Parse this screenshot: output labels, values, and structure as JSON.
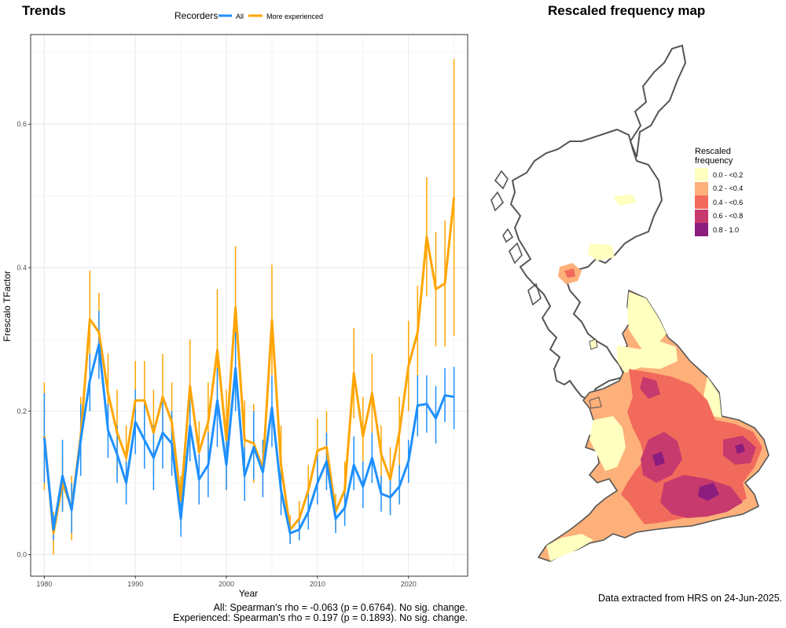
{
  "trends_title": "Trends",
  "map_title": "Rescaled frequency map",
  "legend": {
    "title": "Recorders",
    "items": [
      {
        "label": "All",
        "color": "#1e90ff"
      },
      {
        "label": "More experienced",
        "color": "#ffa500"
      }
    ]
  },
  "stats": {
    "all": "All: Spearman's rho = -0.063 (p = 0.6764). No sig. change.",
    "experienced": "Experienced: Spearman's rho = 0.197 (p = 0.1893). No sig. change."
  },
  "extract_note": "Data extracted from HRS on 24-Jun-2025.",
  "map_legend": {
    "title_line1": "Rescaled",
    "title_line2": "frequency",
    "classes": [
      {
        "label": "0.0 - <0.2",
        "color": "#ffffc0"
      },
      {
        "label": "0.2 - <0.4",
        "color": "#fdb07a"
      },
      {
        "label": "0.4 - <0.6",
        "color": "#f26a5b"
      },
      {
        "label": "0.6 - <0.8",
        "color": "#c63a6e"
      },
      {
        "label": "0.8 - 1.0",
        "color": "#8b1d7e"
      }
    ]
  },
  "chart_data": {
    "type": "line",
    "title": "Trends",
    "xlabel": "Year",
    "ylabel": "Frescalo TFactor",
    "xlim": [
      1978.5,
      2026.5
    ],
    "ylim": [
      -0.03,
      0.725
    ],
    "xticks": [
      1980,
      1990,
      2000,
      2010,
      2020
    ],
    "yticks": [
      0.0,
      0.2,
      0.4,
      0.6
    ],
    "ytick_labels": [
      "0.0",
      "0.2",
      "0.4",
      "0.6"
    ],
    "grid": true,
    "legend_position": "top",
    "x": [
      1980,
      1981,
      1982,
      1983,
      1984,
      1985,
      1986,
      1987,
      1988,
      1989,
      1990,
      1991,
      1992,
      1993,
      1994,
      1995,
      1996,
      1997,
      1998,
      1999,
      2000,
      2001,
      2002,
      2003,
      2004,
      2005,
      2006,
      2007,
      2008,
      2009,
      2010,
      2011,
      2012,
      2013,
      2014,
      2015,
      2016,
      2017,
      2018,
      2019,
      2020,
      2021,
      2022,
      2023,
      2024,
      2025
    ],
    "series": [
      {
        "name": "All",
        "color": "#1e90ff",
        "values": [
          0.163,
          0.035,
          0.11,
          0.062,
          0.16,
          0.243,
          0.293,
          0.173,
          0.14,
          0.1,
          0.185,
          0.16,
          0.135,
          0.17,
          0.155,
          0.05,
          0.18,
          0.105,
          0.125,
          0.215,
          0.125,
          0.26,
          0.11,
          0.15,
          0.115,
          0.205,
          0.09,
          0.03,
          0.035,
          0.06,
          0.1,
          0.13,
          0.05,
          0.065,
          0.125,
          0.095,
          0.135,
          0.085,
          0.08,
          0.095,
          0.13,
          0.208,
          0.21,
          0.19,
          0.222,
          0.22
        ],
        "lower": [
          0.1,
          0.02,
          0.06,
          0.03,
          0.11,
          0.2,
          0.245,
          0.135,
          0.1,
          0.07,
          0.14,
          0.12,
          0.09,
          0.12,
          0.11,
          0.025,
          0.13,
          0.07,
          0.08,
          0.15,
          0.09,
          0.2,
          0.075,
          0.105,
          0.08,
          0.15,
          0.055,
          0.015,
          0.02,
          0.035,
          0.07,
          0.09,
          0.03,
          0.04,
          0.09,
          0.065,
          0.1,
          0.06,
          0.055,
          0.07,
          0.1,
          0.165,
          0.17,
          0.155,
          0.185,
          0.175
        ],
        "upper": [
          0.225,
          0.055,
          0.16,
          0.1,
          0.21,
          0.28,
          0.34,
          0.21,
          0.18,
          0.13,
          0.23,
          0.21,
          0.18,
          0.22,
          0.2,
          0.08,
          0.23,
          0.14,
          0.17,
          0.26,
          0.17,
          0.31,
          0.15,
          0.2,
          0.16,
          0.25,
          0.125,
          0.045,
          0.05,
          0.085,
          0.14,
          0.17,
          0.07,
          0.09,
          0.165,
          0.13,
          0.17,
          0.11,
          0.105,
          0.125,
          0.16,
          0.25,
          0.25,
          0.235,
          0.26,
          0.262
        ]
      },
      {
        "name": "More experienced",
        "color": "#ffa500",
        "values": [
          0.165,
          0.03,
          0.1,
          0.065,
          0.165,
          0.328,
          0.31,
          0.225,
          0.17,
          0.135,
          0.215,
          0.215,
          0.17,
          0.22,
          0.185,
          0.075,
          0.235,
          0.143,
          0.185,
          0.285,
          0.16,
          0.345,
          0.16,
          0.155,
          0.12,
          0.327,
          0.125,
          0.035,
          0.05,
          0.09,
          0.145,
          0.15,
          0.06,
          0.09,
          0.253,
          0.165,
          0.225,
          0.14,
          0.105,
          0.17,
          0.263,
          0.31,
          0.443,
          0.37,
          0.378,
          0.498
        ],
        "lower": [
          0.09,
          0.0,
          0.06,
          0.02,
          0.11,
          0.26,
          0.255,
          0.17,
          0.11,
          0.09,
          0.16,
          0.16,
          0.11,
          0.16,
          0.13,
          0.04,
          0.17,
          0.1,
          0.13,
          0.2,
          0.09,
          0.26,
          0.105,
          0.1,
          0.08,
          0.25,
          0.07,
          0.015,
          0.025,
          0.055,
          0.1,
          0.1,
          0.035,
          0.05,
          0.19,
          0.11,
          0.17,
          0.1,
          0.06,
          0.12,
          0.2,
          0.245,
          0.36,
          0.29,
          0.29,
          0.305
        ]
      }
    ]
  }
}
